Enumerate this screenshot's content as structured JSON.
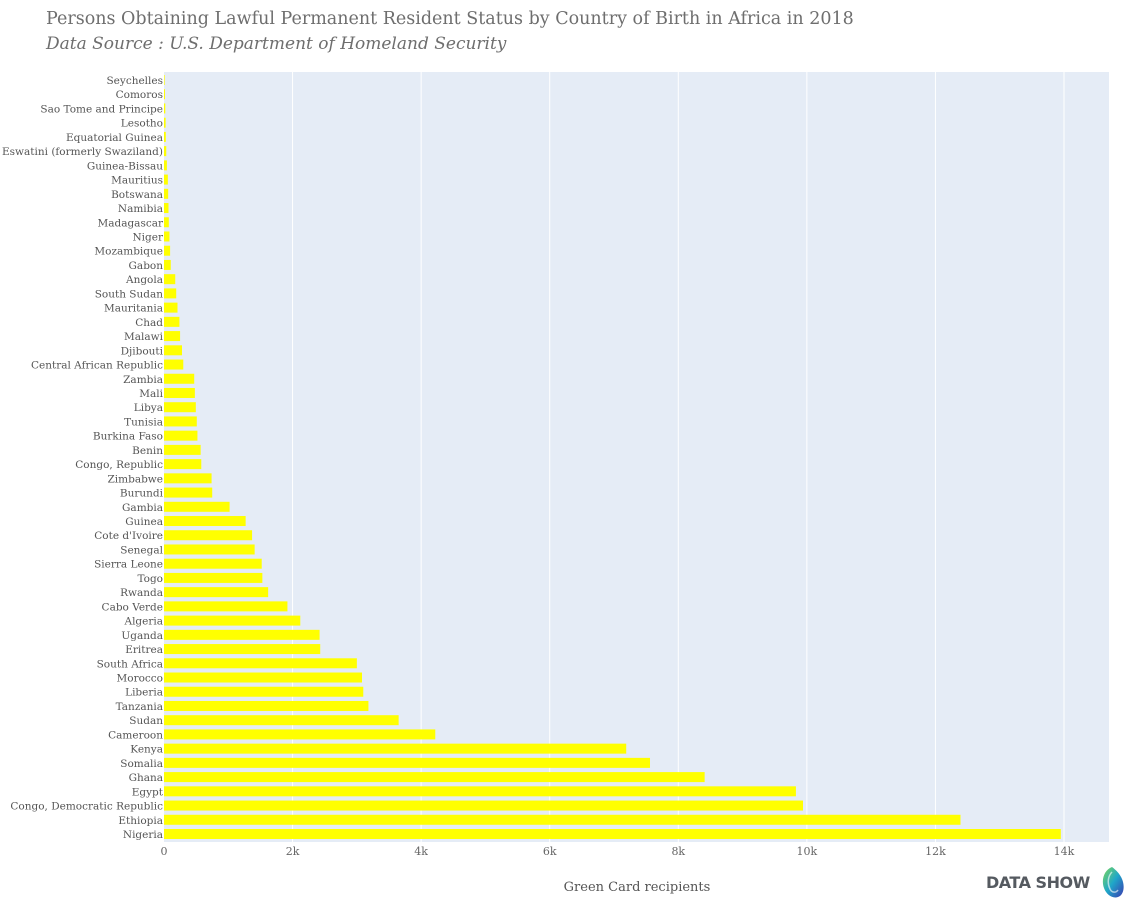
{
  "chart_data": {
    "type": "bar",
    "orientation": "horizontal",
    "title": "Persons Obtaining Lawful Permanent Resident Status by Country of Birth in Africa in 2018",
    "subtitle": "Data Source : U.S. Department of Homeland Security",
    "xlabel": "Green Card recipients",
    "ylabel": "",
    "xlim": [
      0,
      14700
    ],
    "xticks": [
      {
        "value": 0,
        "label": "0"
      },
      {
        "value": 2000,
        "label": "2k"
      },
      {
        "value": 4000,
        "label": "4k"
      },
      {
        "value": 6000,
        "label": "6k"
      },
      {
        "value": 8000,
        "label": "8k"
      },
      {
        "value": 10000,
        "label": "10k"
      },
      {
        "value": 12000,
        "label": "12k"
      },
      {
        "value": 14000,
        "label": "14k"
      }
    ],
    "grid": true,
    "bar_color": "#ffff00",
    "plot_background": "#e5ecf6",
    "categories": [
      "Seychelles",
      "Comoros",
      "Sao Tome and Principe",
      "Lesotho",
      "Equatorial Guinea",
      "Eswatini (formerly Swaziland)",
      "Guinea-Bissau",
      "Mauritius",
      "Botswana",
      "Namibia",
      "Madagascar",
      "Niger",
      "Mozambique",
      "Gabon",
      "Angola",
      "South Sudan",
      "Mauritania",
      "Chad",
      "Malawi",
      "Djibouti",
      "Central African Republic",
      "Zambia",
      "Mali",
      "Libya",
      "Tunisia",
      "Burkina Faso",
      "Benin",
      "Congo, Republic",
      "Zimbabwe",
      "Burundi",
      "Gambia",
      "Guinea",
      "Cote d'Ivoire",
      "Senegal",
      "Sierra Leone",
      "Togo",
      "Rwanda",
      "Cabo Verde",
      "Algeria",
      "Uganda",
      "Eritrea",
      "South Africa",
      "Morocco",
      "Liberia",
      "Tanzania",
      "Sudan",
      "Cameroon",
      "Kenya",
      "Somalia",
      "Ghana",
      "Egypt",
      "Congo, Democratic Republic",
      "Ethiopia",
      "Nigeria"
    ],
    "values": [
      10,
      15,
      20,
      25,
      28,
      35,
      45,
      60,
      65,
      70,
      75,
      85,
      95,
      105,
      175,
      190,
      210,
      240,
      250,
      280,
      300,
      470,
      480,
      495,
      510,
      520,
      570,
      580,
      740,
      750,
      1020,
      1270,
      1370,
      1410,
      1520,
      1530,
      1620,
      1920,
      2120,
      2420,
      2430,
      3000,
      3080,
      3100,
      3180,
      3650,
      4220,
      7190,
      7560,
      8410,
      9830,
      9940,
      12390,
      13950
    ]
  },
  "brand": {
    "logo_text": "DATA SHOW"
  }
}
